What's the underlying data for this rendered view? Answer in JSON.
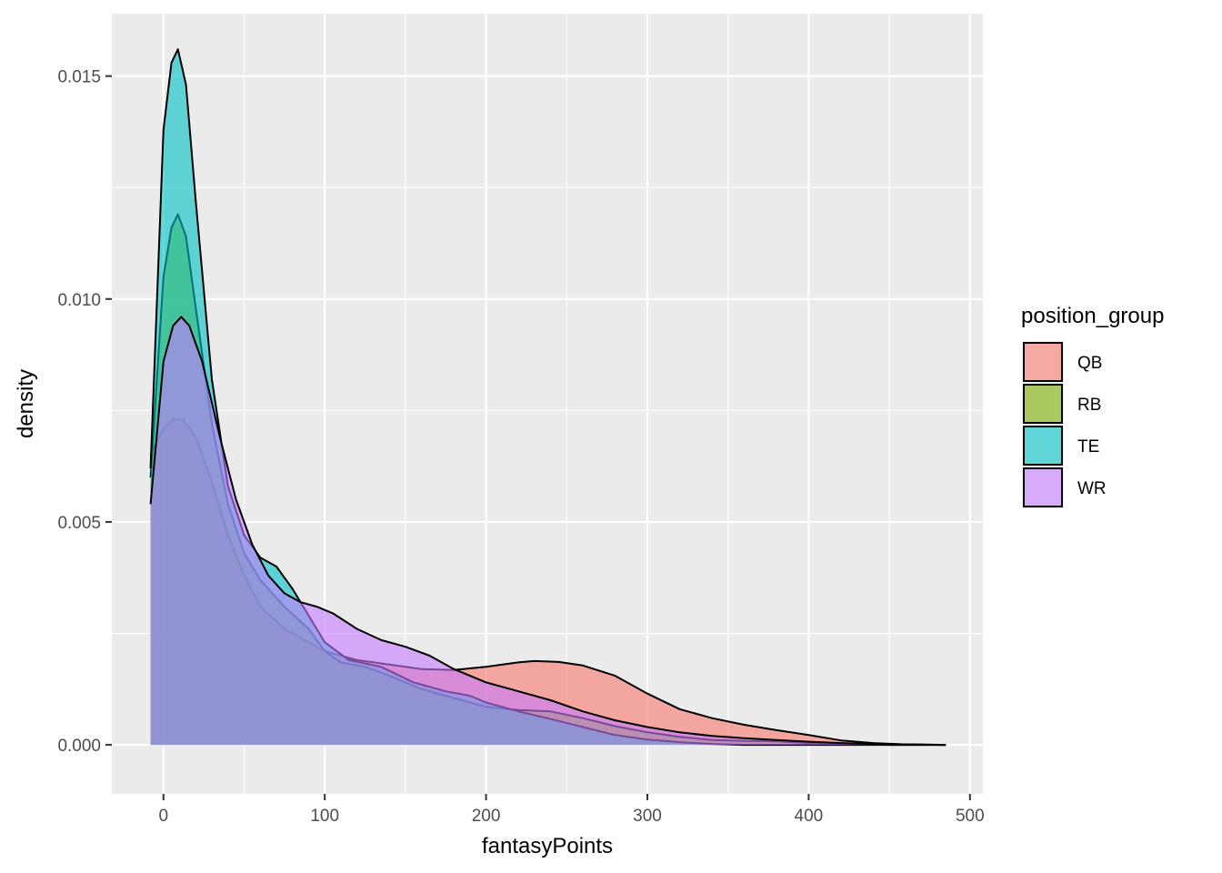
{
  "chart_data": {
    "type": "area",
    "subtype": "density",
    "xlabel": "fantasyPoints",
    "ylabel": "density",
    "xlim": [
      -32,
      508
    ],
    "ylim": [
      -0.0011,
      0.0164
    ],
    "x_ticks": [
      0,
      100,
      200,
      300,
      400,
      500
    ],
    "x_tick_labels": [
      "0",
      "100",
      "200",
      "300",
      "400",
      "500"
    ],
    "y_ticks": [
      0.0,
      0.005,
      0.01,
      0.015
    ],
    "y_tick_labels": [
      "0.000",
      "0.005",
      "0.010",
      "0.015"
    ],
    "grid": true,
    "legend": {
      "title": "position_group",
      "placement": "right",
      "entries": [
        "QB",
        "RB",
        "TE",
        "WR"
      ]
    },
    "fill_alpha": 0.6,
    "series": [
      {
        "name": "QB",
        "color": "#F8766D",
        "points": [
          [
            -8,
            0.0065
          ],
          [
            0,
            0.0071
          ],
          [
            6,
            0.0073
          ],
          [
            12,
            0.0073
          ],
          [
            20,
            0.0069
          ],
          [
            30,
            0.0059
          ],
          [
            40,
            0.0047
          ],
          [
            50,
            0.0038
          ],
          [
            60,
            0.0031
          ],
          [
            75,
            0.0026
          ],
          [
            90,
            0.0023
          ],
          [
            100,
            0.0021
          ],
          [
            120,
            0.0019
          ],
          [
            140,
            0.0018
          ],
          [
            160,
            0.0017
          ],
          [
            180,
            0.00168
          ],
          [
            200,
            0.00175
          ],
          [
            220,
            0.00185
          ],
          [
            230,
            0.00188
          ],
          [
            245,
            0.00186
          ],
          [
            260,
            0.00178
          ],
          [
            280,
            0.00155
          ],
          [
            300,
            0.00115
          ],
          [
            320,
            0.0008
          ],
          [
            340,
            0.0006
          ],
          [
            360,
            0.00045
          ],
          [
            380,
            0.00033
          ],
          [
            400,
            0.00022
          ],
          [
            420,
            0.0001
          ],
          [
            440,
            4e-05
          ],
          [
            460,
            1e-05
          ],
          [
            485,
            0.0
          ]
        ]
      },
      {
        "name": "RB",
        "color": "#7CAE00",
        "points": [
          [
            -8,
            0.006
          ],
          [
            0,
            0.0105
          ],
          [
            5,
            0.0116
          ],
          [
            9,
            0.0119
          ],
          [
            14,
            0.0114
          ],
          [
            20,
            0.0098
          ],
          [
            30,
            0.0072
          ],
          [
            40,
            0.0054
          ],
          [
            50,
            0.0043
          ],
          [
            60,
            0.0037
          ],
          [
            75,
            0.0031
          ],
          [
            90,
            0.0026
          ],
          [
            100,
            0.0021
          ],
          [
            110,
            0.00185
          ],
          [
            125,
            0.00175
          ],
          [
            140,
            0.00155
          ],
          [
            160,
            0.00125
          ],
          [
            175,
            0.0011
          ],
          [
            185,
            0.001
          ],
          [
            200,
            0.00085
          ],
          [
            220,
            0.00078
          ],
          [
            240,
            0.00075
          ],
          [
            260,
            0.0006
          ],
          [
            280,
            0.00042
          ],
          [
            300,
            0.00028
          ],
          [
            320,
            0.00018
          ],
          [
            340,
            0.00011
          ],
          [
            360,
            9e-05
          ],
          [
            380,
            8e-05
          ],
          [
            400,
            4e-05
          ],
          [
            420,
            2e-05
          ],
          [
            450,
            0.0
          ],
          [
            485,
            0.0
          ]
        ]
      },
      {
        "name": "TE",
        "color": "#00BFC4",
        "points": [
          [
            -8,
            0.0062
          ],
          [
            0,
            0.0138
          ],
          [
            5,
            0.0153
          ],
          [
            9,
            0.0156
          ],
          [
            14,
            0.0148
          ],
          [
            20,
            0.0122
          ],
          [
            30,
            0.0082
          ],
          [
            40,
            0.0058
          ],
          [
            50,
            0.0047
          ],
          [
            60,
            0.0042
          ],
          [
            70,
            0.004
          ],
          [
            80,
            0.0035
          ],
          [
            90,
            0.0029
          ],
          [
            100,
            0.0023
          ],
          [
            115,
            0.0019
          ],
          [
            135,
            0.00175
          ],
          [
            155,
            0.0014
          ],
          [
            175,
            0.0012
          ],
          [
            190,
            0.0011
          ],
          [
            200,
            0.00095
          ],
          [
            220,
            0.00075
          ],
          [
            240,
            0.00058
          ],
          [
            260,
            0.0004
          ],
          [
            280,
            0.00022
          ],
          [
            300,
            0.00012
          ],
          [
            320,
            6e-05
          ],
          [
            340,
            2e-05
          ],
          [
            360,
            0.0
          ],
          [
            485,
            0.0
          ]
        ]
      },
      {
        "name": "WR",
        "color": "#C77CFF",
        "points": [
          [
            -8,
            0.0054
          ],
          [
            0,
            0.0086
          ],
          [
            6,
            0.0094
          ],
          [
            11,
            0.0096
          ],
          [
            16,
            0.0094
          ],
          [
            24,
            0.0086
          ],
          [
            35,
            0.0069
          ],
          [
            45,
            0.0055
          ],
          [
            55,
            0.0045
          ],
          [
            65,
            0.0038
          ],
          [
            75,
            0.0034
          ],
          [
            85,
            0.0032
          ],
          [
            95,
            0.0031
          ],
          [
            105,
            0.00295
          ],
          [
            120,
            0.0026
          ],
          [
            135,
            0.00235
          ],
          [
            150,
            0.0022
          ],
          [
            165,
            0.002
          ],
          [
            180,
            0.0017
          ],
          [
            200,
            0.0014
          ],
          [
            220,
            0.0012
          ],
          [
            240,
            0.001
          ],
          [
            260,
            0.00075
          ],
          [
            280,
            0.00055
          ],
          [
            300,
            0.0004
          ],
          [
            320,
            0.00028
          ],
          [
            340,
            0.0002
          ],
          [
            360,
            0.00015
          ],
          [
            380,
            0.00011
          ],
          [
            400,
            7e-05
          ],
          [
            420,
            4e-05
          ],
          [
            440,
            2e-05
          ],
          [
            485,
            0.0
          ]
        ]
      }
    ]
  }
}
